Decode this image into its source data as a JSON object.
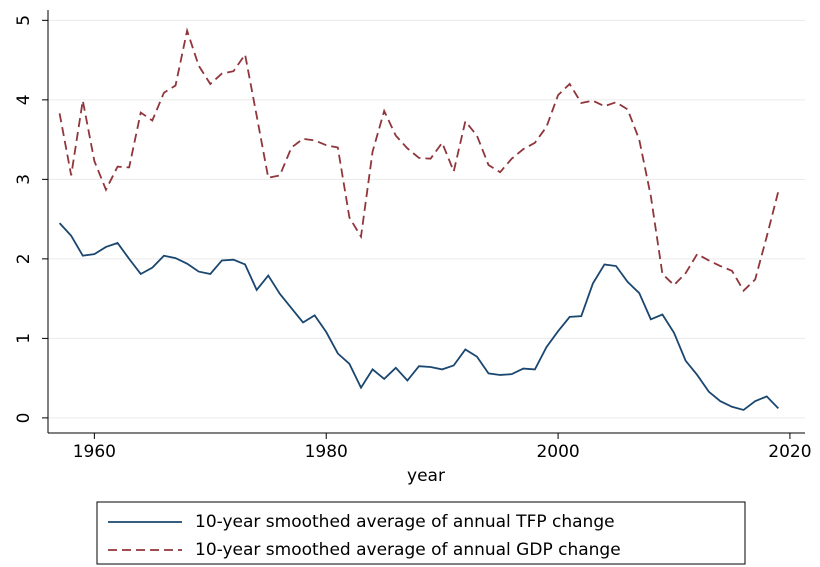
{
  "chart_data": {
    "type": "line",
    "x": [
      1957,
      1958,
      1959,
      1960,
      1961,
      1962,
      1963,
      1964,
      1965,
      1966,
      1967,
      1968,
      1969,
      1970,
      1971,
      1972,
      1973,
      1974,
      1975,
      1976,
      1977,
      1978,
      1979,
      1980,
      1981,
      1982,
      1983,
      1984,
      1985,
      1986,
      1987,
      1988,
      1989,
      1990,
      1991,
      1992,
      1993,
      1994,
      1995,
      1996,
      1997,
      1998,
      1999,
      2000,
      2001,
      2002,
      2003,
      2004,
      2005,
      2006,
      2007,
      2008,
      2009,
      2010,
      2011,
      2012,
      2013,
      2014,
      2015,
      2016,
      2017,
      2018,
      2019
    ],
    "series": [
      {
        "name": "10-year smoothed average of annual TFP change",
        "color": "#1a476f",
        "dash": "solid",
        "values": [
          2.45,
          2.29,
          2.04,
          2.06,
          2.15,
          2.2,
          2.0,
          1.81,
          1.89,
          2.04,
          2.01,
          1.94,
          1.84,
          1.81,
          1.98,
          1.99,
          1.93,
          1.61,
          1.79,
          1.56,
          1.38,
          1.2,
          1.29,
          1.08,
          0.81,
          0.68,
          0.38,
          0.61,
          0.49,
          0.63,
          0.47,
          0.65,
          0.64,
          0.61,
          0.66,
          0.86,
          0.77,
          0.56,
          0.54,
          0.55,
          0.62,
          0.61,
          0.89,
          1.09,
          1.27,
          1.28,
          1.69,
          1.93,
          1.91,
          1.71,
          1.57,
          1.24,
          1.3,
          1.07,
          0.72,
          0.54,
          0.33,
          0.21,
          0.14,
          0.1,
          0.21,
          0.27,
          0.12
        ]
      },
      {
        "name": "10-year smoothed average of annual GDP change",
        "color": "#90353b",
        "dash": "dashed",
        "values": [
          3.83,
          3.05,
          3.99,
          3.23,
          2.87,
          3.16,
          3.15,
          3.84,
          3.74,
          4.09,
          4.18,
          4.87,
          4.43,
          4.2,
          4.33,
          4.36,
          4.57,
          3.8,
          3.02,
          3.05,
          3.4,
          3.51,
          3.49,
          3.43,
          3.4,
          2.52,
          2.28,
          3.35,
          3.86,
          3.55,
          3.39,
          3.27,
          3.26,
          3.46,
          3.1,
          3.73,
          3.55,
          3.18,
          3.09,
          3.26,
          3.38,
          3.46,
          3.66,
          4.06,
          4.2,
          3.96,
          3.99,
          3.92,
          3.97,
          3.88,
          3.5,
          2.79,
          1.81,
          1.67,
          1.82,
          2.06,
          1.98,
          1.91,
          1.85,
          1.6,
          1.74,
          2.28,
          2.85
        ]
      }
    ],
    "xlabel": "year",
    "xlim": [
      1956,
      2021.3
    ],
    "xticks": [
      1960,
      1980,
      2000,
      2020
    ],
    "ylim": [
      -0.19,
      5.13
    ],
    "yticks": [
      0,
      1,
      2,
      3,
      4,
      5
    ],
    "grid": true,
    "legend": "bottom"
  }
}
